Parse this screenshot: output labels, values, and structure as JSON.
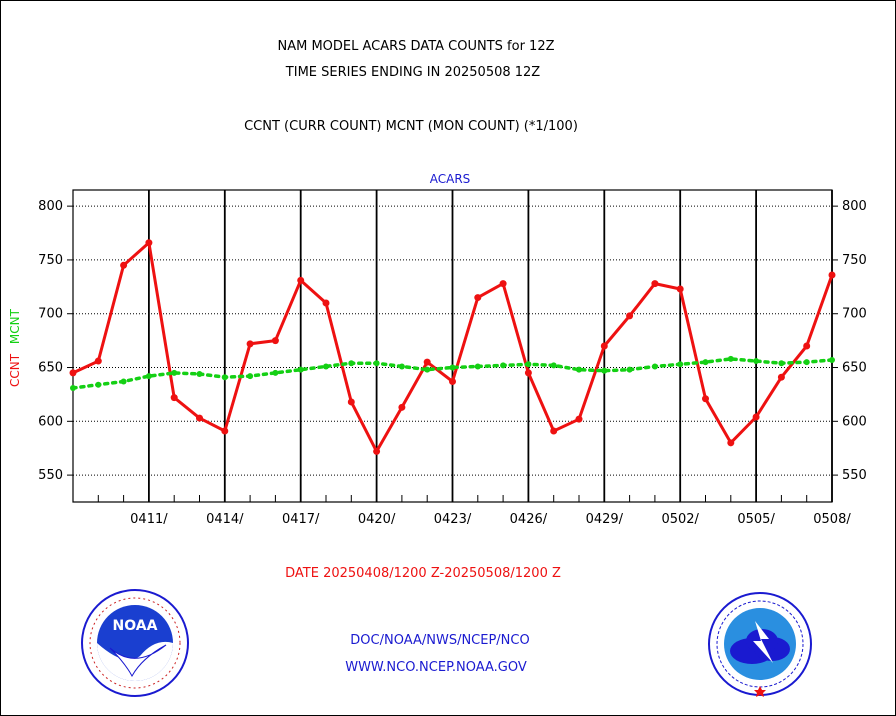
{
  "header": {
    "title_line1": "NAM MODEL ACARS DATA COUNTS for 12Z",
    "title_line2": "TIME SERIES ENDING IN 20250508 12Z",
    "subtitle": "CCNT (CURR COUNT) MCNT (MON COUNT) (*1/100)",
    "series_title": "ACARS"
  },
  "footer": {
    "date_range": "DATE 20250408/1200 Z-20250508/1200 Z",
    "credit_line1": "DOC/NOAA/NWS/NCEP/NCO",
    "credit_line2": "WWW.NCO.NCEP.NOAA.GOV"
  },
  "logos": {
    "left": "noaa-logo",
    "right": "national-weather-service-logo"
  },
  "colors": {
    "ccnt": "#ee1111",
    "mcnt": "#14d014",
    "text_blue": "#1a1ad0",
    "grid": "#000000"
  },
  "chart_data": {
    "type": "line",
    "ylabel_ccnt": "CCNT",
    "ylabel_mcnt": "MCNT",
    "x_tick_labels": [
      "0411/",
      "0414/",
      "0417/",
      "0420/",
      "0423/",
      "0426/",
      "0429/",
      "0502/",
      "0505/",
      "0508/"
    ],
    "x": [
      "0408",
      "0409",
      "0410",
      "0411",
      "0412",
      "0413",
      "0414",
      "0415",
      "0416",
      "0417",
      "0418",
      "0419",
      "0420",
      "0421",
      "0422",
      "0423",
      "0424",
      "0425",
      "0426",
      "0427",
      "0428",
      "0429",
      "0430",
      "0501",
      "0502",
      "0503",
      "0504",
      "0505",
      "0506",
      "0507",
      "0508"
    ],
    "xlim": [
      "0408",
      "0508"
    ],
    "ylim": [
      525,
      815
    ],
    "y_ticks": [
      550,
      600,
      650,
      700,
      750,
      800
    ],
    "grid": true,
    "series": [
      {
        "name": "CCNT",
        "color": "#ee1111",
        "style": "solid",
        "values": [
          645,
          656,
          745,
          766,
          622,
          603,
          591,
          672,
          675,
          731,
          710,
          618,
          572,
          613,
          655,
          637,
          715,
          728,
          645,
          591,
          602,
          670,
          698,
          728,
          723,
          621,
          580,
          604,
          641,
          670,
          736
        ]
      },
      {
        "name": "MCNT",
        "color": "#14d014",
        "style": "dotted",
        "values": [
          631,
          634,
          637,
          642,
          645,
          644,
          641,
          642,
          645,
          648,
          651,
          654,
          654,
          651,
          648,
          650,
          651,
          652,
          653,
          652,
          648,
          647,
          648,
          651,
          653,
          655,
          658,
          656,
          654,
          655,
          657
        ]
      }
    ]
  }
}
